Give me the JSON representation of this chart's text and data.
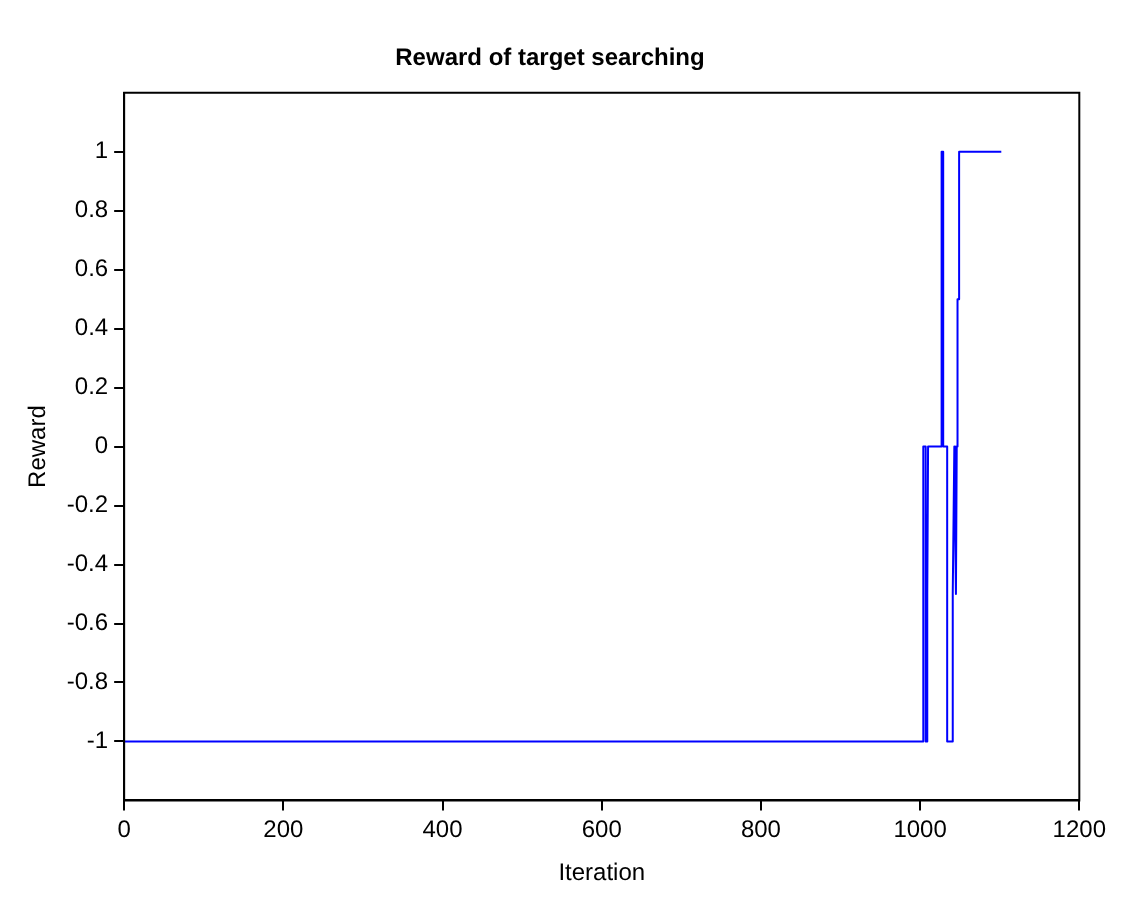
{
  "chart_data": {
    "type": "line",
    "title": "Reward of target searching",
    "xlabel": "Iteration",
    "ylabel": "Reward",
    "x": [
      0,
      1004,
      1004,
      1007,
      1007,
      1009,
      1009,
      1010,
      1027,
      1027,
      1029,
      1029,
      1034,
      1034,
      1041,
      1041,
      1043,
      1045,
      1045,
      1046,
      1047,
      1049,
      1049,
      1102
    ],
    "series": [
      {
        "color": "#0000ff",
        "values": [
          -1,
          -1,
          0,
          0,
          -1,
          -1,
          -0.5,
          0,
          0,
          1,
          1,
          0,
          0,
          -1,
          -1,
          -0.5,
          0,
          0,
          -0.5,
          0,
          0.5,
          0.5,
          1,
          1
        ]
      }
    ],
    "xlim": [
      0,
      1200
    ],
    "xticks": [
      0,
      200,
      400,
      600,
      800,
      1000,
      1200
    ],
    "ylim": [
      -1.2,
      1.2
    ],
    "yticks": [
      -1,
      -0.8,
      -0.6,
      -0.4,
      -0.2,
      0,
      0.2,
      0.4,
      0.6,
      0.8,
      1
    ],
    "grid": false,
    "legend": false,
    "marker": "none",
    "line_style": "solid"
  }
}
